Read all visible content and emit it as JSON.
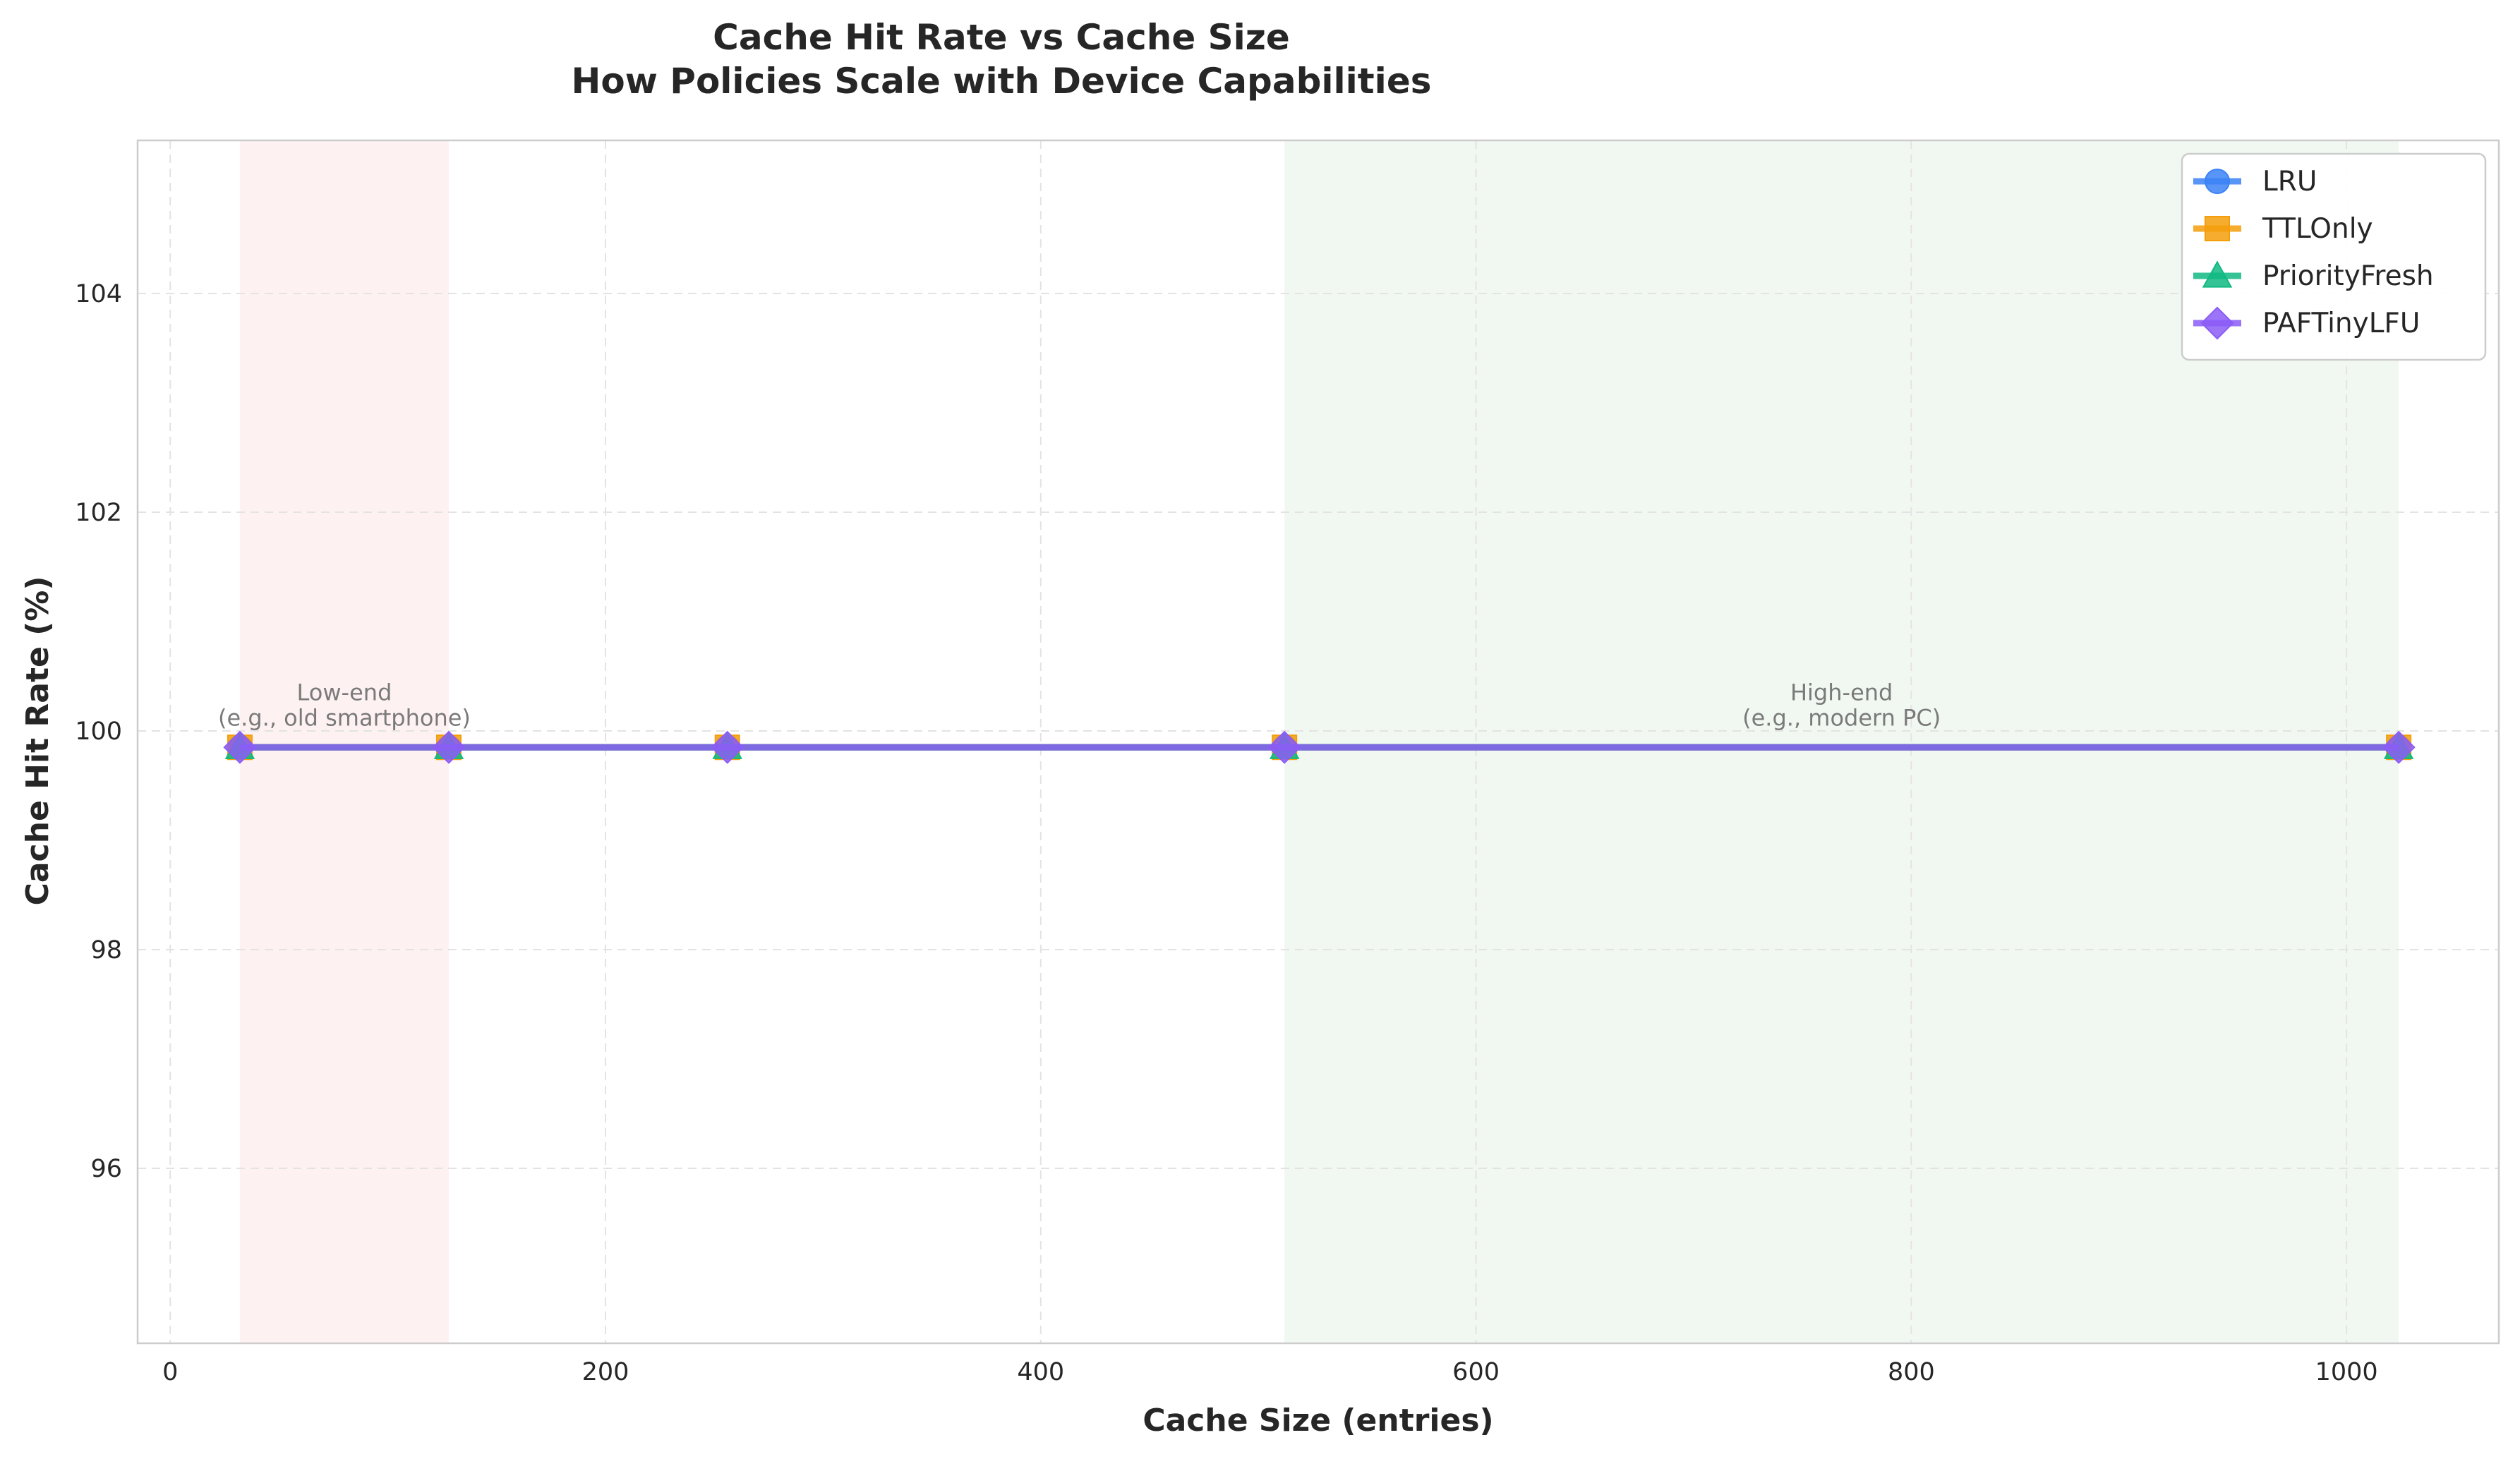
{
  "colors": {
    "LRU": "#3b82f6",
    "TTLOnly": "#f59e0b",
    "PriorityFresh": "#10b981",
    "PAFTinyLFU": "#8b5cf6",
    "low_band": "#fde8ea",
    "high_band": "#e8f3e8"
  },
  "chart_data": {
    "type": "line",
    "title": "Cache Hit Rate vs Cache Size",
    "subtitle": "How Policies Scale with Device Capabilities",
    "xlabel": "Cache Size (entries)",
    "ylabel": "Cache Hit Rate (%)",
    "xlim": [
      -15,
      1070
    ],
    "ylim": [
      94.4,
      105.4
    ],
    "xticks": [
      0,
      200,
      400,
      600,
      800,
      1000
    ],
    "yticks": [
      96,
      98,
      100,
      102,
      104
    ],
    "grid": true,
    "legend_position": "top-right",
    "x": [
      32,
      128,
      256,
      512,
      1024
    ],
    "series": [
      {
        "name": "LRU",
        "marker": "circle",
        "color": "#3b82f6",
        "values": [
          99.85,
          99.85,
          99.85,
          99.85,
          99.85
        ]
      },
      {
        "name": "TTLOnly",
        "marker": "square",
        "color": "#f59e0b",
        "values": [
          99.85,
          99.85,
          99.85,
          99.85,
          99.85
        ]
      },
      {
        "name": "PriorityFresh",
        "marker": "triangle",
        "color": "#10b981",
        "values": [
          99.85,
          99.85,
          99.85,
          99.85,
          99.85
        ]
      },
      {
        "name": "PAFTinyLFU",
        "marker": "diamond",
        "color": "#8b5cf6",
        "values": [
          99.85,
          99.85,
          99.85,
          99.85,
          99.85
        ]
      }
    ],
    "bands": [
      {
        "x_range": [
          32,
          128
        ],
        "color": "#fde8ea",
        "label_line1": "Low-end",
        "label_line2": "(e.g., old smartphone)",
        "label_y": 100.05
      },
      {
        "x_range": [
          512,
          1024
        ],
        "color": "#e8f3e8",
        "label_line1": "High-end",
        "label_line2": "(e.g., modern PC)",
        "label_y": 100.05
      }
    ]
  }
}
